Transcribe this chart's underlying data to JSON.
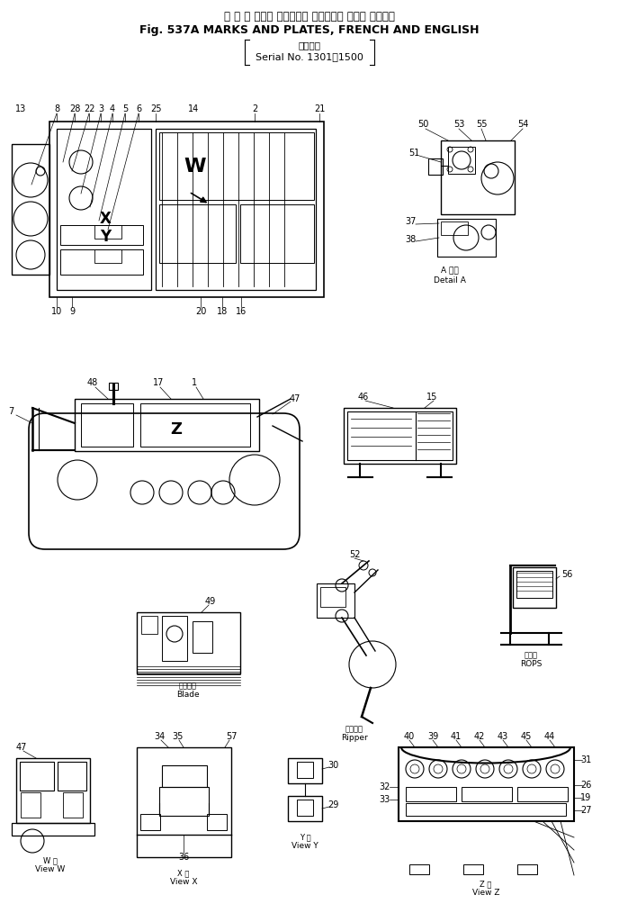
{
  "title_jp": "マ ー ク および ブレート． フランス語 および 英　　語",
  "title_en": "Fig. 537A MARKS AND PLATES, FRENCH AND ENGLISH",
  "serial_jp": "適用号機",
  "serial_en": "Serial No. 1301～1500",
  "bg_color": "#ffffff",
  "line_color": "#000000",
  "text_color": "#000000",
  "font_size_title": 9,
  "font_size_label": 7,
  "font_size_number": 7,
  "detail_a_jp": "A 部詳",
  "detail_a_en": "Detail A",
  "blade_jp": "ブレード",
  "blade_en": "Blade",
  "ripper_jp": "リッパー",
  "ripper_en": "Ripper",
  "rops_jp": "ロプス",
  "rops_en": "ROPS",
  "vieww_jp": "W 構",
  "vieww_en": "View W",
  "viewx_jp": "X 構",
  "viewx_en": "View X",
  "viewy_jp": "Y 構",
  "viewy_en": "View Y",
  "viewz_jp": "Z 構",
  "viewz_en": "View Z"
}
